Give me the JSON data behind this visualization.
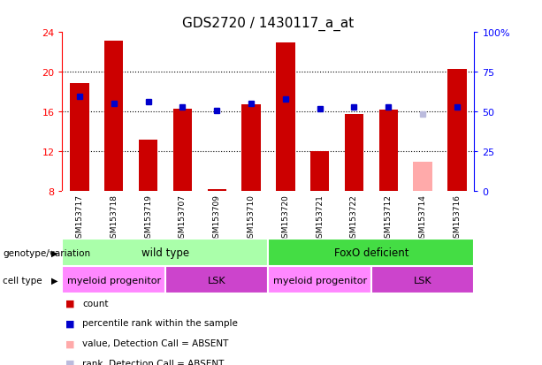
{
  "title": "GDS2720 / 1430117_a_at",
  "samples": [
    "GSM153717",
    "GSM153718",
    "GSM153719",
    "GSM153707",
    "GSM153709",
    "GSM153710",
    "GSM153720",
    "GSM153721",
    "GSM153722",
    "GSM153712",
    "GSM153714",
    "GSM153716"
  ],
  "bar_values": [
    18.9,
    23.1,
    13.2,
    16.3,
    8.2,
    16.7,
    23.0,
    12.0,
    15.8,
    16.2,
    11.0,
    20.3
  ],
  "bar_absent": [
    false,
    false,
    false,
    false,
    false,
    false,
    false,
    false,
    false,
    false,
    true,
    false
  ],
  "rank_values": [
    17.5,
    16.8,
    17.0,
    16.5,
    16.1,
    16.8,
    17.3,
    16.3,
    16.5,
    16.5,
    15.8,
    16.5
  ],
  "rank_absent": [
    false,
    false,
    false,
    false,
    false,
    false,
    false,
    false,
    false,
    false,
    true,
    false
  ],
  "ylim_left": [
    8,
    24
  ],
  "ylim_right": [
    0,
    100
  ],
  "yticks_left": [
    8,
    12,
    16,
    20,
    24
  ],
  "yticks_right": [
    0,
    25,
    50,
    75,
    100
  ],
  "ytick_labels_right": [
    "0",
    "25",
    "50",
    "75",
    "100%"
  ],
  "bar_color": "#cc0000",
  "bar_absent_color": "#ffaaaa",
  "rank_color": "#0000cc",
  "rank_absent_color": "#bbbbdd",
  "grid_color": "black",
  "plot_bg_color": "#ffffff",
  "xtick_bg_color": "#cccccc",
  "genotype_groups": [
    {
      "label": "wild type",
      "start": 0,
      "end": 6,
      "color": "#aaffaa"
    },
    {
      "label": "FoxO deficient",
      "start": 6,
      "end": 12,
      "color": "#44dd44"
    }
  ],
  "cell_groups": [
    {
      "label": "myeloid progenitor",
      "start": 0,
      "end": 3,
      "color": "#ff88ff"
    },
    {
      "label": "LSK",
      "start": 3,
      "end": 6,
      "color": "#cc44cc"
    },
    {
      "label": "myeloid progenitor",
      "start": 6,
      "end": 9,
      "color": "#ff88ff"
    },
    {
      "label": "LSK",
      "start": 9,
      "end": 12,
      "color": "#cc44cc"
    }
  ],
  "legend_items": [
    {
      "label": "count",
      "color": "#cc0000"
    },
    {
      "label": "percentile rank within the sample",
      "color": "#0000cc"
    },
    {
      "label": "value, Detection Call = ABSENT",
      "color": "#ffaaaa"
    },
    {
      "label": "rank, Detection Call = ABSENT",
      "color": "#bbbbdd"
    }
  ],
  "bar_width": 0.55,
  "n": 12
}
